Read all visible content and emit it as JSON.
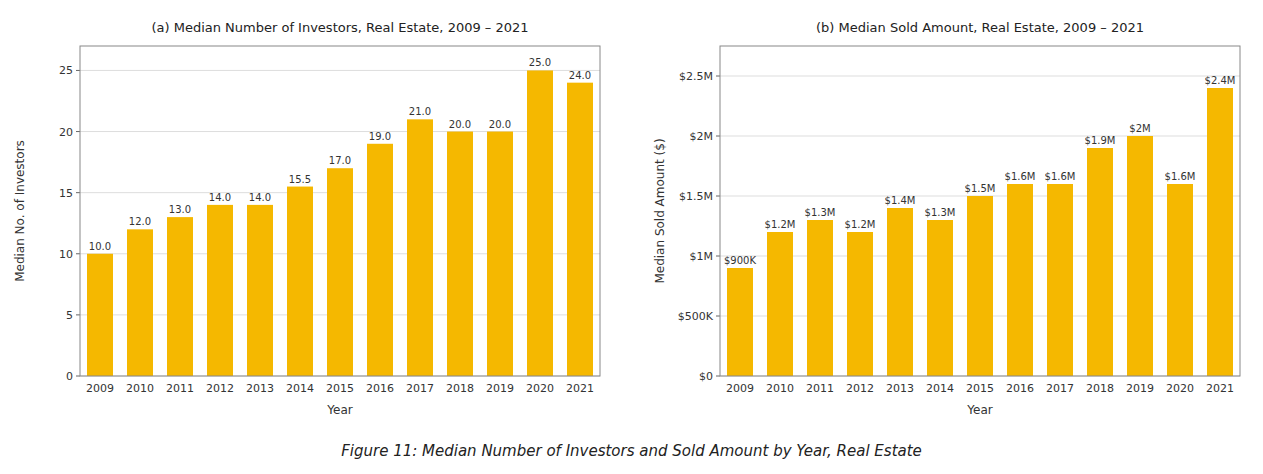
{
  "chart_data": [
    {
      "type": "bar",
      "title": "(a) Median Number of Investors, Real Estate, 2009 – 2021",
      "xlabel": "Year",
      "ylabel": "Median No. of Investors",
      "categories": [
        "2009",
        "2010",
        "2011",
        "2012",
        "2013",
        "2014",
        "2015",
        "2016",
        "2017",
        "2018",
        "2019",
        "2020",
        "2021"
      ],
      "values": [
        10.0,
        12.0,
        13.0,
        14.0,
        14.0,
        15.5,
        17.0,
        19.0,
        21.0,
        20.0,
        20.0,
        25.0,
        24.0
      ],
      "value_labels": [
        "10.0",
        "12.0",
        "13.0",
        "14.0",
        "14.0",
        "15.5",
        "17.0",
        "19.0",
        "21.0",
        "20.0",
        "20.0",
        "25.0",
        "24.0"
      ],
      "data_labels": true,
      "color": "#F5B800",
      "ylim": [
        0,
        27
      ],
      "yticks": [
        0,
        5,
        10,
        15,
        20,
        25
      ],
      "grid": true
    },
    {
      "type": "bar",
      "title": "(b) Median Sold Amount, Real Estate, 2009 – 2021",
      "xlabel": "Year",
      "ylabel": "Median Sold Amount ($)",
      "categories": [
        "2009",
        "2010",
        "2011",
        "2012",
        "2013",
        "2014",
        "2015",
        "2016",
        "2017",
        "2018",
        "2019",
        "2020",
        "2021"
      ],
      "values": [
        900000,
        1200000,
        1300000,
        1200000,
        1400000,
        1300000,
        1500000,
        1600000,
        1600000,
        1900000,
        2000000,
        1600000,
        2400000
      ],
      "value_labels": [
        "$900K",
        "$1.2M",
        "$1.3M",
        "$1.2M",
        "$1.4M",
        "$1.3M",
        "$1.5M",
        "$1.6M",
        "$1.6M",
        "$1.9M",
        "$2M",
        "$1.6M",
        "$2.4M"
      ],
      "data_labels": true,
      "color": "#F5B800",
      "ylim": [
        0,
        2750000
      ],
      "yticks": [
        {
          "value": 0,
          "label": "$0"
        },
        {
          "value": 500000,
          "label": "$500K"
        },
        {
          "value": 1000000,
          "label": "$1M"
        },
        {
          "value": 1500000,
          "label": "$1.5M"
        },
        {
          "value": 2000000,
          "label": "$2M"
        },
        {
          "value": 2500000,
          "label": "$2.5M"
        }
      ],
      "grid": true
    }
  ],
  "caption": "Figure 11:  Median Number of Investors and Sold Amount by Year, Real Estate"
}
